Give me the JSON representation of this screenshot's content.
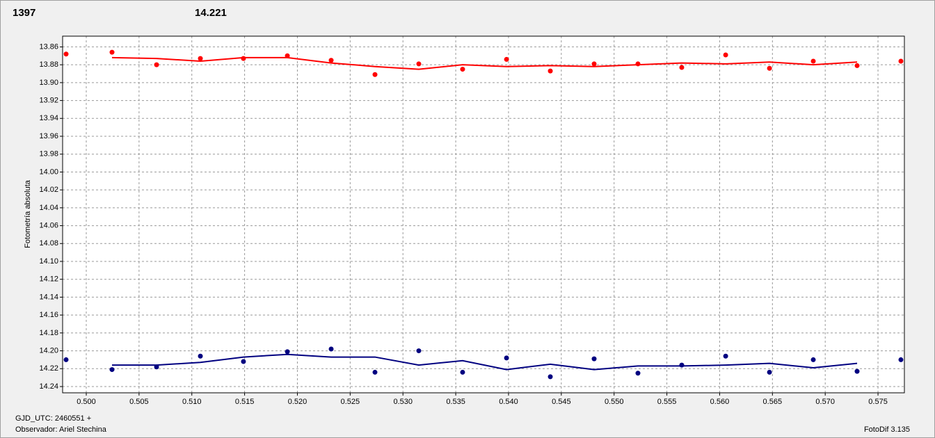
{
  "chart_data": {
    "type": "scatter",
    "ylabel": "Fotometría absoluta",
    "xlabel": "GJD_UTC: 2460551 +",
    "observer": "Observador: Ariel Stechina",
    "software": "FotoDif 3.135",
    "grid": true,
    "x": [
      0.49809,
      0.50244,
      0.50666,
      0.51081,
      0.51489,
      0.51905,
      0.5232,
      0.52735,
      0.5315,
      0.53565,
      0.53981,
      0.54396,
      0.54811,
      0.55226,
      0.55641,
      0.56057,
      0.56472,
      0.56887,
      0.57302,
      0.57717
    ],
    "series": [
      {
        "name": "1397",
        "color": "#ff0000",
        "values": [
          13.868,
          13.866,
          13.88,
          13.873,
          13.873,
          13.87,
          13.875,
          13.891,
          13.879,
          13.885,
          13.874,
          13.887,
          13.879,
          13.879,
          13.883,
          13.869,
          13.884,
          13.876,
          13.881,
          13.876
        ],
        "trend": [
          null,
          13.872,
          13.873,
          13.876,
          13.872,
          13.872,
          13.878,
          13.882,
          13.885,
          13.88,
          13.882,
          13.881,
          13.882,
          13.88,
          13.878,
          13.879,
          13.877,
          13.88,
          13.877,
          null
        ]
      },
      {
        "name": "14.221",
        "color": "#000080",
        "values": [
          14.21,
          14.221,
          14.218,
          14.206,
          14.212,
          14.201,
          14.198,
          14.224,
          14.2,
          14.224,
          14.208,
          14.229,
          14.209,
          14.225,
          14.216,
          14.206,
          14.224,
          14.21,
          14.223,
          14.21
        ],
        "trend": [
          null,
          14.216,
          14.216,
          14.213,
          14.207,
          14.204,
          14.207,
          14.207,
          14.216,
          14.211,
          14.221,
          14.215,
          14.221,
          14.217,
          14.217,
          14.216,
          14.214,
          14.219,
          14.214,
          null
        ]
      }
    ],
    "xlim": [
      0.49776,
      0.5775
    ],
    "ylim": [
      14.247,
      13.848
    ],
    "xticks": [
      {
        "value": 0.5,
        "label": "0.500"
      },
      0.505,
      {
        "value": 0.51,
        "label": "0.510"
      },
      0.515,
      {
        "value": 0.52,
        "label": "0.520"
      },
      0.525,
      {
        "value": 0.53,
        "label": "0.530"
      },
      0.535,
      {
        "value": 0.54,
        "label": "0.540"
      },
      0.545,
      {
        "value": 0.55,
        "label": "0.550"
      },
      0.555,
      {
        "value": 0.56,
        "label": "0.560"
      },
      0.565,
      {
        "value": 0.57,
        "label": "0.570"
      },
      0.575
    ],
    "yticks": [
      13.86,
      13.88,
      {
        "value": 13.9,
        "label": "13.90"
      },
      13.92,
      13.94,
      13.96,
      13.98,
      {
        "value": 14,
        "label": "14.00"
      },
      14.02,
      14.04,
      14.06,
      14.08,
      {
        "value": 14.1,
        "label": "14.10"
      },
      14.12,
      14.14,
      14.16,
      14.18,
      {
        "value": 14.2,
        "label": "14.20"
      },
      14.22,
      14.24
    ]
  }
}
